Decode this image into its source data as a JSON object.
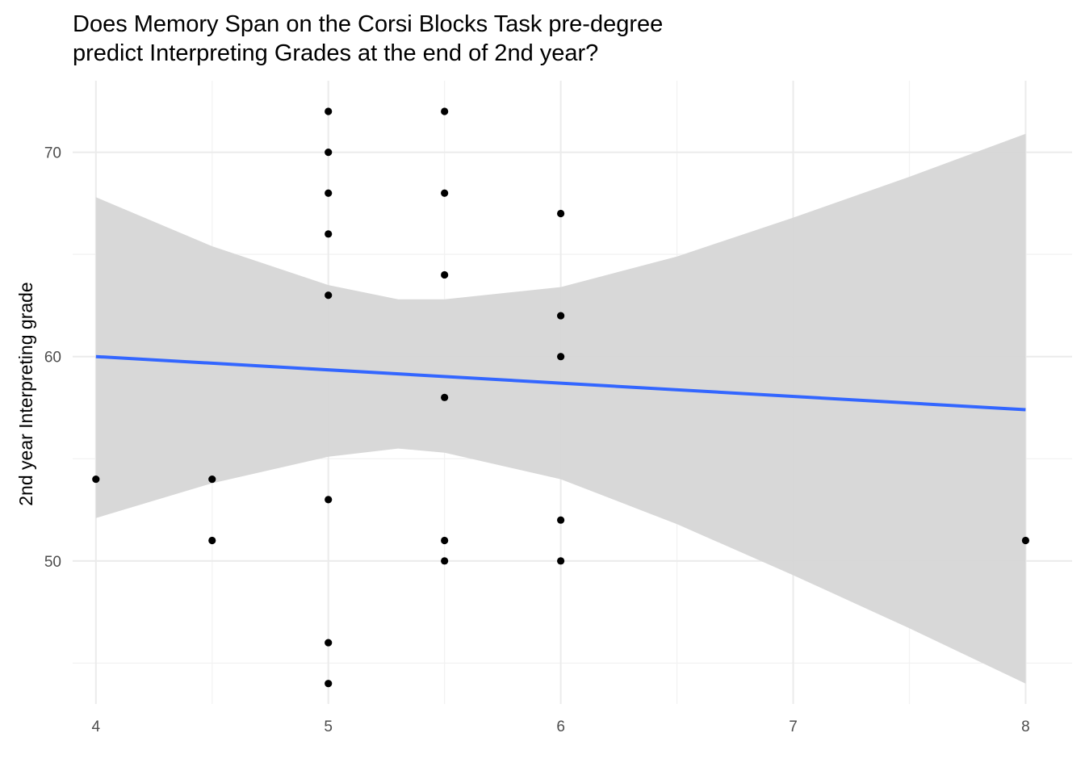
{
  "chart_data": {
    "type": "scatter",
    "title_lines": [
      "Does Memory Span on the Corsi Blocks Task pre-degree",
      "predict Interpreting Grades at the end of 2nd year?"
    ],
    "xlabel": "",
    "ylabel": "2nd year Interpreting grade",
    "xlim": [
      3.9,
      8.2
    ],
    "ylim": [
      43,
      73.5
    ],
    "x_ticks": [
      4,
      5,
      6,
      7,
      8
    ],
    "x_minor_ticks": [
      4.5,
      5.5,
      6.5,
      7.5
    ],
    "y_ticks": [
      50,
      60,
      70
    ],
    "y_minor_ticks": [
      45,
      55,
      65
    ],
    "grid": true,
    "points": [
      {
        "x": 4,
        "y": 54
      },
      {
        "x": 4.5,
        "y": 54
      },
      {
        "x": 4.5,
        "y": 51
      },
      {
        "x": 5,
        "y": 72
      },
      {
        "x": 5,
        "y": 70
      },
      {
        "x": 5,
        "y": 68
      },
      {
        "x": 5,
        "y": 66
      },
      {
        "x": 5,
        "y": 63
      },
      {
        "x": 5,
        "y": 53
      },
      {
        "x": 5,
        "y": 46
      },
      {
        "x": 5,
        "y": 44
      },
      {
        "x": 5.5,
        "y": 72
      },
      {
        "x": 5.5,
        "y": 68
      },
      {
        "x": 5.5,
        "y": 64
      },
      {
        "x": 5.5,
        "y": 58
      },
      {
        "x": 5.5,
        "y": 51
      },
      {
        "x": 5.5,
        "y": 50
      },
      {
        "x": 6,
        "y": 67
      },
      {
        "x": 6,
        "y": 62
      },
      {
        "x": 6,
        "y": 60
      },
      {
        "x": 6,
        "y": 52
      },
      {
        "x": 6,
        "y": 50
      },
      {
        "x": 8,
        "y": 51
      }
    ],
    "fit_line": {
      "x": [
        4,
        8
      ],
      "y": [
        60.0,
        57.4
      ]
    },
    "confidence_band": {
      "x": [
        4.0,
        4.5,
        5.0,
        5.3,
        5.5,
        6.0,
        6.5,
        7.0,
        7.5,
        8.0
      ],
      "upper": [
        67.8,
        65.4,
        63.5,
        62.8,
        62.8,
        63.4,
        64.9,
        66.8,
        68.8,
        70.9
      ],
      "lower": [
        52.1,
        53.8,
        55.1,
        55.5,
        55.3,
        54.0,
        51.8,
        49.3,
        46.7,
        44.0
      ]
    },
    "colors": {
      "points": "#000000",
      "fit_line": "#3366ff",
      "band": "#d6d6d6",
      "grid_major": "#ebebeb",
      "grid_minor": "#f2f2f2"
    }
  }
}
